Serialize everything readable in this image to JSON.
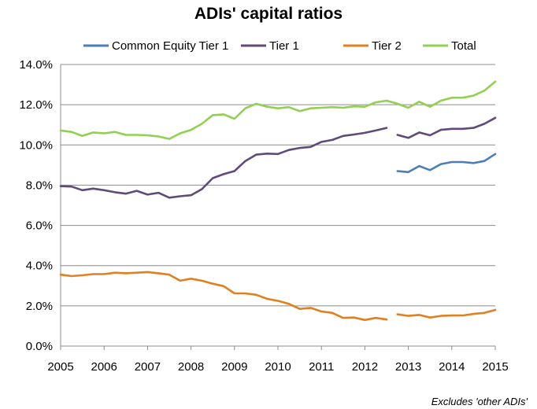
{
  "chart_data": {
    "type": "line",
    "title": "ADIs' capital ratios",
    "footnote": "Excludes 'other ADIs'",
    "xlabel": "",
    "ylabel": "",
    "xlim": [
      2005,
      2015
    ],
    "ylim": [
      0,
      14
    ],
    "x_ticks": [
      "2005",
      "2006",
      "2007",
      "2008",
      "2009",
      "2010",
      "2011",
      "2012",
      "2013",
      "2014",
      "2015"
    ],
    "y_ticks": [
      "0.0%",
      "2.0%",
      "4.0%",
      "6.0%",
      "8.0%",
      "10.0%",
      "12.0%",
      "14.0%"
    ],
    "grid": "horizontal",
    "legend_position": "top",
    "series": [
      {
        "name": "Common Equity Tier 1",
        "color": "#4a7ebb",
        "segments": [
          [
            [
              2012.75,
              8.7
            ],
            [
              2013.0,
              8.65
            ],
            [
              2013.25,
              8.95
            ],
            [
              2013.5,
              8.75
            ],
            [
              2013.75,
              9.05
            ],
            [
              2014.0,
              9.15
            ],
            [
              2014.25,
              9.15
            ],
            [
              2014.5,
              9.1
            ],
            [
              2014.75,
              9.2
            ],
            [
              2015.0,
              9.55
            ]
          ]
        ]
      },
      {
        "name": "Tier 1",
        "color": "#604a7b",
        "segments": [
          [
            [
              2005.0,
              7.95
            ],
            [
              2005.25,
              7.93
            ],
            [
              2005.5,
              7.75
            ],
            [
              2005.75,
              7.83
            ],
            [
              2006.0,
              7.75
            ],
            [
              2006.25,
              7.65
            ],
            [
              2006.5,
              7.58
            ],
            [
              2006.75,
              7.72
            ],
            [
              2007.0,
              7.53
            ],
            [
              2007.25,
              7.62
            ],
            [
              2007.5,
              7.38
            ],
            [
              2007.75,
              7.45
            ],
            [
              2008.0,
              7.5
            ],
            [
              2008.25,
              7.8
            ],
            [
              2008.5,
              8.35
            ],
            [
              2008.75,
              8.55
            ],
            [
              2009.0,
              8.7
            ],
            [
              2009.25,
              9.2
            ],
            [
              2009.5,
              9.52
            ],
            [
              2009.75,
              9.57
            ],
            [
              2010.0,
              9.55
            ],
            [
              2010.25,
              9.75
            ],
            [
              2010.5,
              9.85
            ],
            [
              2010.75,
              9.9
            ],
            [
              2011.0,
              10.15
            ],
            [
              2011.25,
              10.25
            ],
            [
              2011.5,
              10.45
            ],
            [
              2011.75,
              10.52
            ],
            [
              2012.0,
              10.6
            ],
            [
              2012.25,
              10.72
            ],
            [
              2012.5,
              10.85
            ]
          ],
          [
            [
              2012.75,
              10.5
            ],
            [
              2013.0,
              10.35
            ],
            [
              2013.25,
              10.62
            ],
            [
              2013.5,
              10.48
            ],
            [
              2013.75,
              10.75
            ],
            [
              2014.0,
              10.8
            ],
            [
              2014.25,
              10.8
            ],
            [
              2014.5,
              10.85
            ],
            [
              2014.75,
              11.05
            ],
            [
              2015.0,
              11.35
            ]
          ]
        ]
      },
      {
        "name": "Tier 2",
        "color": "#e0801f",
        "segments": [
          [
            [
              2005.0,
              3.55
            ],
            [
              2005.25,
              3.48
            ],
            [
              2005.5,
              3.52
            ],
            [
              2005.75,
              3.58
            ],
            [
              2006.0,
              3.58
            ],
            [
              2006.25,
              3.65
            ],
            [
              2006.5,
              3.62
            ],
            [
              2006.75,
              3.65
            ],
            [
              2007.0,
              3.68
            ],
            [
              2007.25,
              3.62
            ],
            [
              2007.5,
              3.55
            ],
            [
              2007.75,
              3.25
            ],
            [
              2008.0,
              3.35
            ],
            [
              2008.25,
              3.25
            ],
            [
              2008.5,
              3.1
            ],
            [
              2008.75,
              2.98
            ],
            [
              2009.0,
              2.62
            ],
            [
              2009.25,
              2.62
            ],
            [
              2009.5,
              2.55
            ],
            [
              2009.75,
              2.35
            ],
            [
              2010.0,
              2.25
            ],
            [
              2010.25,
              2.1
            ],
            [
              2010.5,
              1.85
            ],
            [
              2010.75,
              1.9
            ],
            [
              2011.0,
              1.72
            ],
            [
              2011.25,
              1.65
            ],
            [
              2011.5,
              1.4
            ],
            [
              2011.75,
              1.42
            ],
            [
              2012.0,
              1.3
            ],
            [
              2012.25,
              1.4
            ],
            [
              2012.5,
              1.32
            ]
          ],
          [
            [
              2012.75,
              1.58
            ],
            [
              2013.0,
              1.5
            ],
            [
              2013.25,
              1.55
            ],
            [
              2013.5,
              1.42
            ],
            [
              2013.75,
              1.5
            ],
            [
              2014.0,
              1.52
            ],
            [
              2014.25,
              1.52
            ],
            [
              2014.5,
              1.6
            ],
            [
              2014.75,
              1.65
            ],
            [
              2015.0,
              1.8
            ]
          ]
        ]
      },
      {
        "name": "Total",
        "color": "#92d050",
        "segments": [
          [
            [
              2005.0,
              10.72
            ],
            [
              2005.25,
              10.65
            ],
            [
              2005.5,
              10.45
            ],
            [
              2005.75,
              10.62
            ],
            [
              2006.0,
              10.58
            ],
            [
              2006.25,
              10.65
            ],
            [
              2006.5,
              10.5
            ],
            [
              2006.75,
              10.5
            ],
            [
              2007.0,
              10.48
            ],
            [
              2007.25,
              10.42
            ],
            [
              2007.5,
              10.3
            ],
            [
              2007.75,
              10.58
            ],
            [
              2008.0,
              10.75
            ],
            [
              2008.25,
              11.05
            ],
            [
              2008.5,
              11.48
            ],
            [
              2008.75,
              11.52
            ],
            [
              2009.0,
              11.3
            ],
            [
              2009.25,
              11.82
            ],
            [
              2009.5,
              12.05
            ],
            [
              2009.75,
              11.9
            ],
            [
              2010.0,
              11.82
            ],
            [
              2010.25,
              11.88
            ],
            [
              2010.5,
              11.68
            ],
            [
              2010.75,
              11.82
            ],
            [
              2011.0,
              11.85
            ],
            [
              2011.25,
              11.88
            ],
            [
              2011.5,
              11.85
            ],
            [
              2011.75,
              11.92
            ],
            [
              2012.0,
              11.9
            ],
            [
              2012.25,
              12.12
            ],
            [
              2012.5,
              12.2
            ],
            [
              2012.75,
              12.05
            ],
            [
              2013.0,
              11.85
            ],
            [
              2013.25,
              12.15
            ],
            [
              2013.5,
              11.9
            ],
            [
              2013.75,
              12.2
            ],
            [
              2014.0,
              12.35
            ],
            [
              2014.25,
              12.35
            ],
            [
              2014.5,
              12.45
            ],
            [
              2014.75,
              12.7
            ],
            [
              2015.0,
              13.15
            ]
          ]
        ]
      }
    ]
  }
}
